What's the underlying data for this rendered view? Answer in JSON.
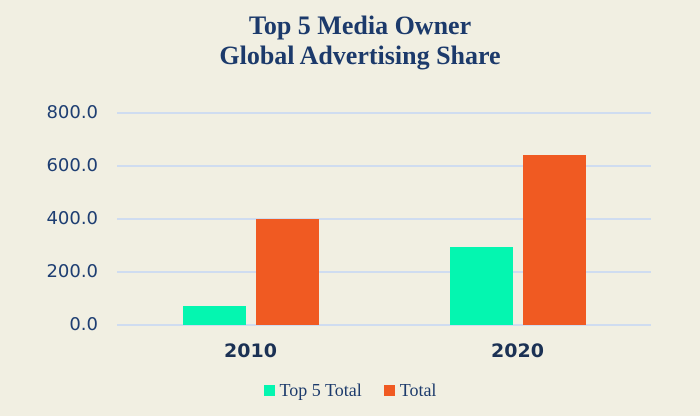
{
  "title": {
    "line1": "Top 5 Media Owner",
    "line2": "Global Advertising Share"
  },
  "chart_data": {
    "type": "bar",
    "categories": [
      "2010",
      "2020"
    ],
    "series": [
      {
        "name": "Top 5 Total",
        "color": "#04f6b0",
        "values": [
          70,
          295
        ]
      },
      {
        "name": "Total",
        "color": "#f05a22",
        "values": [
          400,
          640
        ]
      }
    ],
    "title": "Top 5 Media Owner Global Advertising Share",
    "xlabel": "",
    "ylabel": "",
    "ylim": [
      0,
      800
    ],
    "yticks": [
      {
        "value": 800,
        "label": "800.0"
      },
      {
        "value": 600,
        "label": "600.0"
      },
      {
        "value": 400,
        "label": "400.0"
      },
      {
        "value": 200,
        "label": "200.0"
      },
      {
        "value": 0,
        "label": "0.0"
      }
    ],
    "grid": "horizontal",
    "legend_position": "bottom"
  },
  "colors": {
    "background": "#f1efe2",
    "text": "#1c3a6b",
    "gridline": "#cfdcf0",
    "series_top5": "#04f6b0",
    "series_total": "#f05a22"
  }
}
